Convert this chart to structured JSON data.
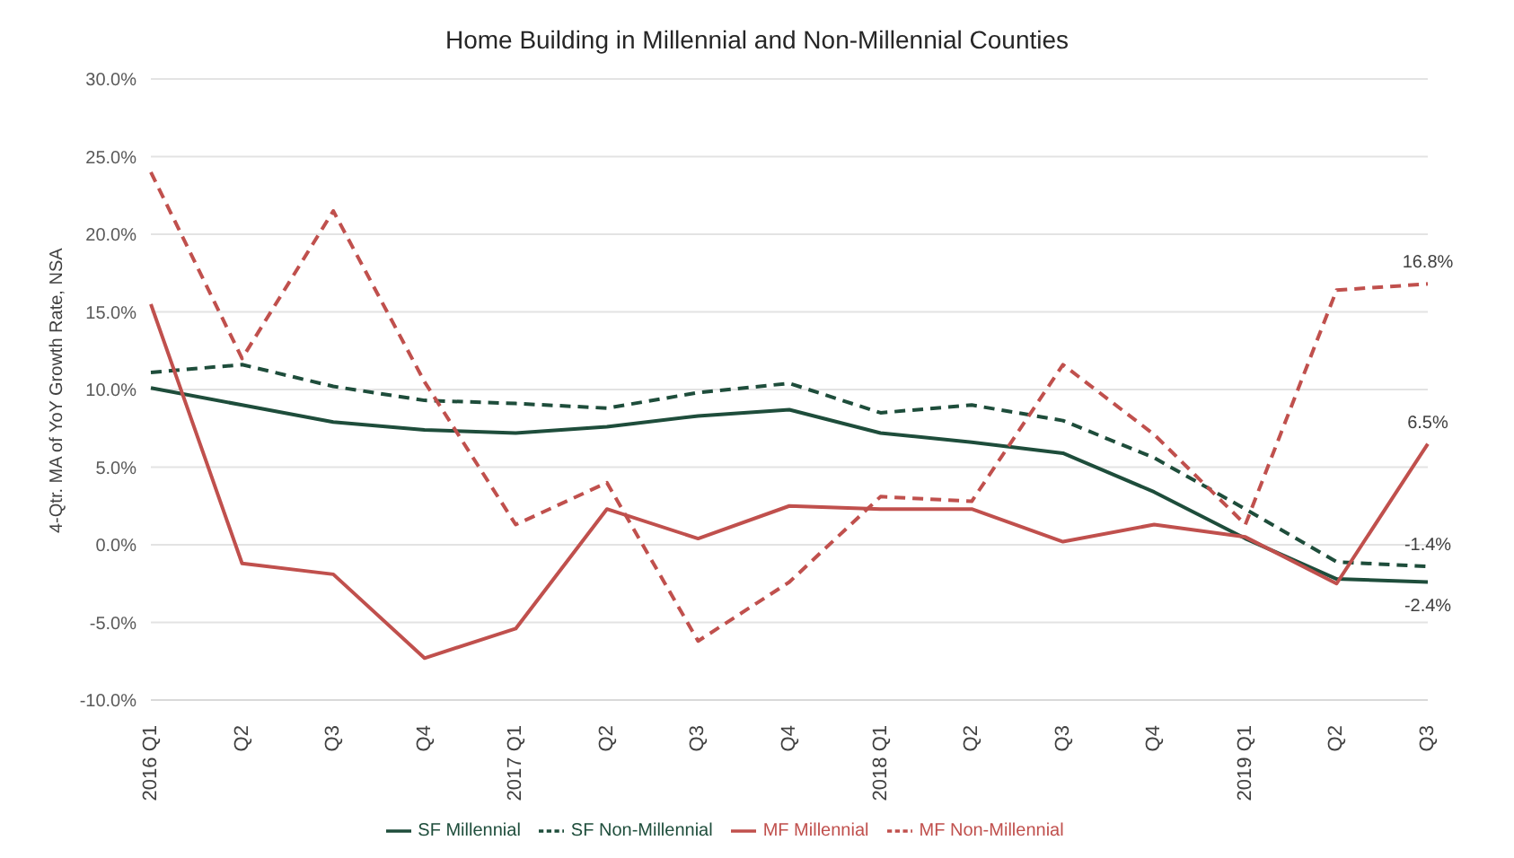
{
  "chart_data": {
    "type": "line",
    "title": "Home Building in Millennial and Non-Millennial Counties",
    "ylabel": "4-Qtr. MA of YoY Growth Rate, NSA",
    "categories": [
      "2016 Q1",
      "Q2",
      "Q3",
      "Q4",
      "2017 Q1",
      "Q2",
      "Q3",
      "Q4",
      "2018 Q1",
      "Q2",
      "Q3",
      "Q4",
      "2019 Q1",
      "Q2",
      "Q3"
    ],
    "series": [
      {
        "name": "SF Millennial",
        "color": "#1e4d3b",
        "line_style": "solid",
        "values": [
          10.1,
          9.0,
          7.9,
          7.4,
          7.2,
          7.6,
          8.3,
          8.7,
          7.2,
          6.6,
          5.9,
          3.4,
          0.4,
          -2.2,
          -2.4
        ],
        "value_labels": [
          null,
          null,
          null,
          null,
          null,
          null,
          null,
          null,
          null,
          null,
          null,
          null,
          null,
          null,
          "-2.4%"
        ]
      },
      {
        "name": "SF Non-Millennial",
        "color": "#1e4d3b",
        "line_style": "dashed",
        "values": [
          11.1,
          11.6,
          10.2,
          9.3,
          9.1,
          8.8,
          9.8,
          10.4,
          8.5,
          9.0,
          8.0,
          5.6,
          2.3,
          -1.1,
          -1.4
        ],
        "value_labels": [
          null,
          null,
          null,
          null,
          null,
          null,
          null,
          null,
          null,
          null,
          null,
          null,
          null,
          null,
          "-1.4%"
        ]
      },
      {
        "name": "MF Millennial",
        "color": "#c0504d",
        "line_style": "solid",
        "values": [
          15.5,
          -1.2,
          -1.9,
          -7.3,
          -5.4,
          2.3,
          0.4,
          2.5,
          2.3,
          2.3,
          0.2,
          1.3,
          0.5,
          -2.5,
          6.5
        ],
        "value_labels": [
          null,
          null,
          null,
          null,
          null,
          null,
          null,
          null,
          null,
          null,
          null,
          null,
          null,
          null,
          "6.5%"
        ]
      },
      {
        "name": "MF Non-Millennial",
        "color": "#c0504d",
        "line_style": "dashed",
        "values": [
          24.0,
          12.0,
          21.5,
          10.5,
          1.3,
          4.0,
          -6.2,
          -2.4,
          3.1,
          2.8,
          11.6,
          7.1,
          1.3,
          16.4,
          16.8
        ],
        "value_labels": [
          null,
          null,
          null,
          null,
          null,
          null,
          null,
          null,
          null,
          null,
          null,
          null,
          null,
          null,
          "16.8%"
        ]
      }
    ],
    "ylim": [
      -10,
      30
    ],
    "yticks": [
      {
        "value": -10,
        "label": "-10.0%"
      },
      {
        "value": -5,
        "label": "-5.0%"
      },
      {
        "value": 0,
        "label": "0.0%"
      },
      {
        "value": 5,
        "label": "5.0%"
      },
      {
        "value": 10,
        "label": "10.0%"
      },
      {
        "value": 15,
        "label": "15.0%"
      },
      {
        "value": 20,
        "label": "20.0%"
      },
      {
        "value": 25,
        "label": "25.0%"
      },
      {
        "value": 30,
        "label": "30.0%"
      }
    ],
    "grid": "y",
    "legend": "bottom",
    "marker": "none"
  }
}
